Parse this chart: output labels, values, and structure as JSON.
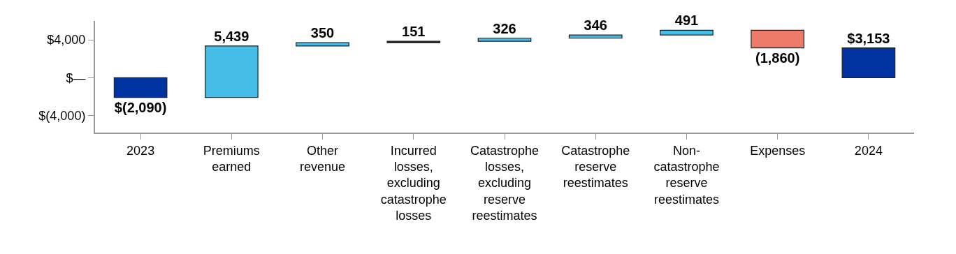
{
  "chart_data": {
    "type": "bar",
    "categories": [
      "2023",
      "Premiums earned",
      "Other revenue",
      "Incurred losses, excluding catastrophe losses",
      "Catastrophe losses, excluding reserve reestimates",
      "Catastrophe reserve reestimates",
      "Non-catastrophe reserve reestimates",
      "Expenses",
      "2024"
    ],
    "values": [
      -2090,
      5439,
      350,
      151,
      326,
      346,
      491,
      -1860,
      3153
    ],
    "base": [
      0,
      -2090,
      3349,
      3699,
      3850,
      4176,
      4522,
      5013,
      0
    ],
    "colors": [
      "#0033a0",
      "#45bde6",
      "#45bde6",
      "#111111",
      "#45bde6",
      "#45bde6",
      "#45bde6",
      "#ec7b6c",
      "#0033a0"
    ],
    "value_labels": [
      "$(2,090)",
      "5,439",
      "350",
      "151",
      "326",
      "346",
      "491",
      "(1,860)",
      "$3,153"
    ],
    "ylim": [
      -5800,
      6000
    ],
    "yticks": [
      {
        "value": -4000,
        "label": "$(4,000)"
      },
      {
        "value": 0,
        "label": "$—"
      },
      {
        "value": 4000,
        "label": "$4,000"
      }
    ],
    "grid": false
  }
}
